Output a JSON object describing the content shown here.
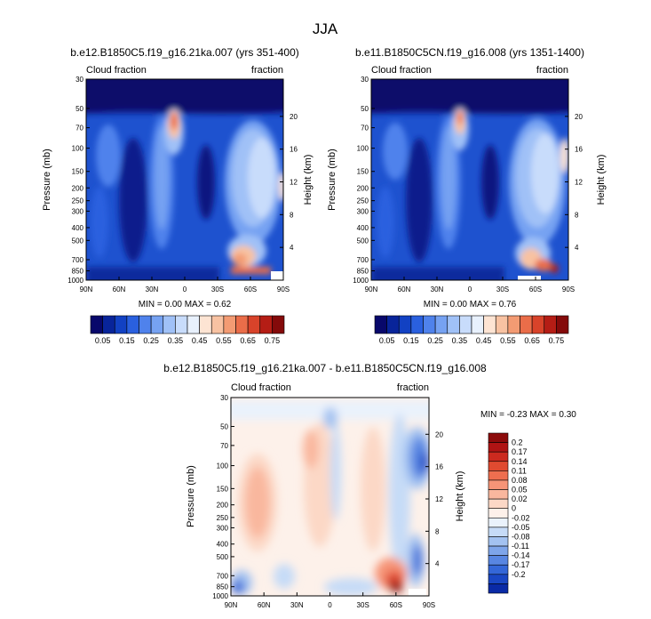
{
  "figure_title": "JJA",
  "chart_data": [
    {
      "type": "heatmap",
      "title": "b.e12.B1850C5.f19_g16.21ka.007 (yrs 351-400)",
      "subtitle_left": "Cloud fraction",
      "subtitle_right": "fraction",
      "xlabel": "",
      "ylabel": "Pressure (mb)",
      "y2label": "Height (km)",
      "x_ticks": [
        "90N",
        "60N",
        "30N",
        "0",
        "30S",
        "60S",
        "90S"
      ],
      "y_ticks": [
        "30",
        "50",
        "70",
        "100",
        "150",
        "200",
        "250",
        "300",
        "400",
        "500",
        "700",
        "850",
        "1000"
      ],
      "y_ticks_values": [
        30,
        50,
        70,
        100,
        150,
        200,
        250,
        300,
        400,
        500,
        700,
        850,
        1000
      ],
      "y2_ticks": [
        "20",
        "16",
        "12",
        "8",
        "4"
      ],
      "y2_ticks_values": [
        20,
        16,
        12,
        8,
        4
      ],
      "xlim": [
        90,
        -90
      ],
      "ylim": [
        1000,
        30
      ],
      "y_scale": "log",
      "stats_text": "MIN =   0.00   MAX =   0.62",
      "colorbar": {
        "orientation": "horizontal",
        "labels": [
          "0.05",
          "0.15",
          "0.25",
          "0.35",
          "0.45",
          "0.55",
          "0.65",
          "0.75"
        ],
        "colors": [
          "#08086b",
          "#08249a",
          "#1241c3",
          "#2a60df",
          "#4f82ec",
          "#76a2f2",
          "#a0c1f7",
          "#c8dcfb",
          "#e8f1fd",
          "#fde4d3",
          "#f8c2a2",
          "#f39b73",
          "#ea6d49",
          "#d8432a",
          "#b51d15",
          "#840a0a"
        ]
      }
    },
    {
      "type": "heatmap",
      "title": "b.e11.B1850C5CN.f19_g16.008 (yrs 1351-1400)",
      "subtitle_left": "Cloud fraction",
      "subtitle_right": "fraction",
      "xlabel": "",
      "ylabel": "Pressure (mb)",
      "y2label": "Height (km)",
      "x_ticks": [
        "90N",
        "60N",
        "30N",
        "0",
        "30S",
        "60S",
        "90S"
      ],
      "y_ticks": [
        "30",
        "50",
        "70",
        "100",
        "150",
        "200",
        "250",
        "300",
        "400",
        "500",
        "700",
        "850",
        "1000"
      ],
      "y_ticks_values": [
        30,
        50,
        70,
        100,
        150,
        200,
        250,
        300,
        400,
        500,
        700,
        850,
        1000
      ],
      "y2_ticks": [
        "20",
        "16",
        "12",
        "8",
        "4"
      ],
      "y2_ticks_values": [
        20,
        16,
        12,
        8,
        4
      ],
      "xlim": [
        90,
        -90
      ],
      "ylim": [
        1000,
        30
      ],
      "y_scale": "log",
      "stats_text": "MIN =   0.00   MAX =   0.76",
      "colorbar": {
        "orientation": "horizontal",
        "labels": [
          "0.05",
          "0.15",
          "0.25",
          "0.35",
          "0.45",
          "0.55",
          "0.65",
          "0.75"
        ],
        "colors": [
          "#08086b",
          "#08249a",
          "#1241c3",
          "#2a60df",
          "#4f82ec",
          "#76a2f2",
          "#a0c1f7",
          "#c8dcfb",
          "#e8f1fd",
          "#fde4d3",
          "#f8c2a2",
          "#f39b73",
          "#ea6d49",
          "#d8432a",
          "#b51d15",
          "#840a0a"
        ]
      }
    },
    {
      "type": "heatmap",
      "title": "b.e12.B1850C5.f19_g16.21ka.007 - b.e11.B1850C5CN.f19_g16.008",
      "subtitle_left": "Cloud fraction",
      "subtitle_right": "fraction",
      "xlabel": "",
      "ylabel": "Pressure (mb)",
      "y2label": "Height (km)",
      "x_ticks": [
        "90N",
        "60N",
        "30N",
        "0",
        "30S",
        "60S",
        "90S"
      ],
      "y_ticks": [
        "30",
        "50",
        "70",
        "100",
        "150",
        "200",
        "250",
        "300",
        "400",
        "500",
        "700",
        "850",
        "1000"
      ],
      "y_ticks_values": [
        30,
        50,
        70,
        100,
        150,
        200,
        250,
        300,
        400,
        500,
        700,
        850,
        1000
      ],
      "y2_ticks": [
        "20",
        "16",
        "12",
        "8",
        "4"
      ],
      "y2_ticks_values": [
        20,
        16,
        12,
        8,
        4
      ],
      "xlim": [
        90,
        -90
      ],
      "ylim": [
        1000,
        30
      ],
      "y_scale": "log",
      "stats_text": "MIN =  -0.23   MAX =   0.30",
      "colorbar": {
        "orientation": "vertical",
        "labels": [
          "0.2",
          "0.17",
          "0.14",
          "0.11",
          "0.08",
          "0.05",
          "0.02",
          "0",
          "-0.02",
          "-0.05",
          "-0.08",
          "-0.11",
          "-0.14",
          "-0.17",
          "-0.2"
        ],
        "colors": [
          "#8c0b0b",
          "#b01414",
          "#cc2a1f",
          "#e04a30",
          "#ee6e4f",
          "#f69477",
          "#f9b79e",
          "#fcd8c6",
          "#fdf1ea",
          "#eaf2fc",
          "#c6dbf7",
          "#a3c2f1",
          "#7ea5ea",
          "#5886e2",
          "#3467d8",
          "#1a47c4",
          "#0a2aa6"
        ]
      }
    }
  ]
}
